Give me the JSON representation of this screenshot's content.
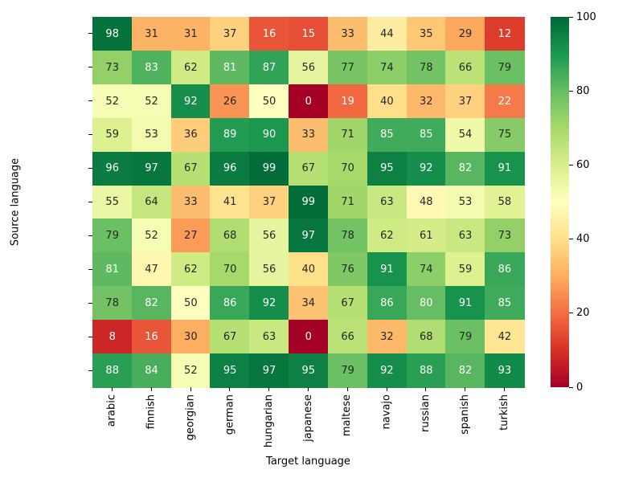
{
  "chart_data": {
    "type": "heatmap",
    "title": "",
    "xlabel": "Target language",
    "ylabel": "Source language",
    "rows": [
      "arabic",
      "finnish",
      "georgian",
      "german",
      "hungarian",
      "japanese",
      "maltese",
      "navajo",
      "russian",
      "spanish",
      "turkish"
    ],
    "columns": [
      "arabic",
      "finnish",
      "georgian",
      "german",
      "hungarian",
      "japanese",
      "maltese",
      "navajo",
      "russian",
      "spanish",
      "turkish"
    ],
    "values": [
      [
        98,
        31,
        31,
        37,
        16,
        15,
        33,
        44,
        35,
        29,
        12
      ],
      [
        73,
        83,
        62,
        81,
        87,
        56,
        77,
        74,
        78,
        66,
        79
      ],
      [
        52,
        52,
        92,
        26,
        50,
        0,
        19,
        40,
        32,
        37,
        22
      ],
      [
        59,
        53,
        36,
        89,
        90,
        33,
        71,
        85,
        85,
        54,
        75
      ],
      [
        96,
        97,
        67,
        96,
        99,
        67,
        70,
        95,
        92,
        82,
        91
      ],
      [
        55,
        64,
        33,
        41,
        37,
        99,
        71,
        63,
        48,
        53,
        58
      ],
      [
        79,
        52,
        27,
        68,
        56,
        97,
        78,
        62,
        61,
        63,
        73
      ],
      [
        81,
        47,
        62,
        70,
        56,
        40,
        76,
        91,
        74,
        59,
        86
      ],
      [
        78,
        82,
        50,
        86,
        92,
        34,
        67,
        86,
        80,
        91,
        85
      ],
      [
        8,
        16,
        30,
        67,
        63,
        0,
        66,
        32,
        68,
        79,
        42
      ],
      [
        88,
        84,
        52,
        95,
        97,
        95,
        79,
        92,
        88,
        82,
        93
      ]
    ],
    "vmin": 0,
    "vmax": 100,
    "grid": false,
    "legend_position": "colorbar-right",
    "colormap": "RdYlGn",
    "colormap_stops": [
      "#a50026",
      "#d73027",
      "#f46d43",
      "#fdae61",
      "#fee08b",
      "#ffffbf",
      "#d9ef8b",
      "#a6d96a",
      "#66bd63",
      "#1a9850",
      "#006837"
    ],
    "colorbar_ticks": [
      0,
      20,
      40,
      60,
      80,
      100
    ],
    "annotation_dark_text": "#262626",
    "annotation_light_text": "#ffffff",
    "tick_color": "#000000"
  }
}
